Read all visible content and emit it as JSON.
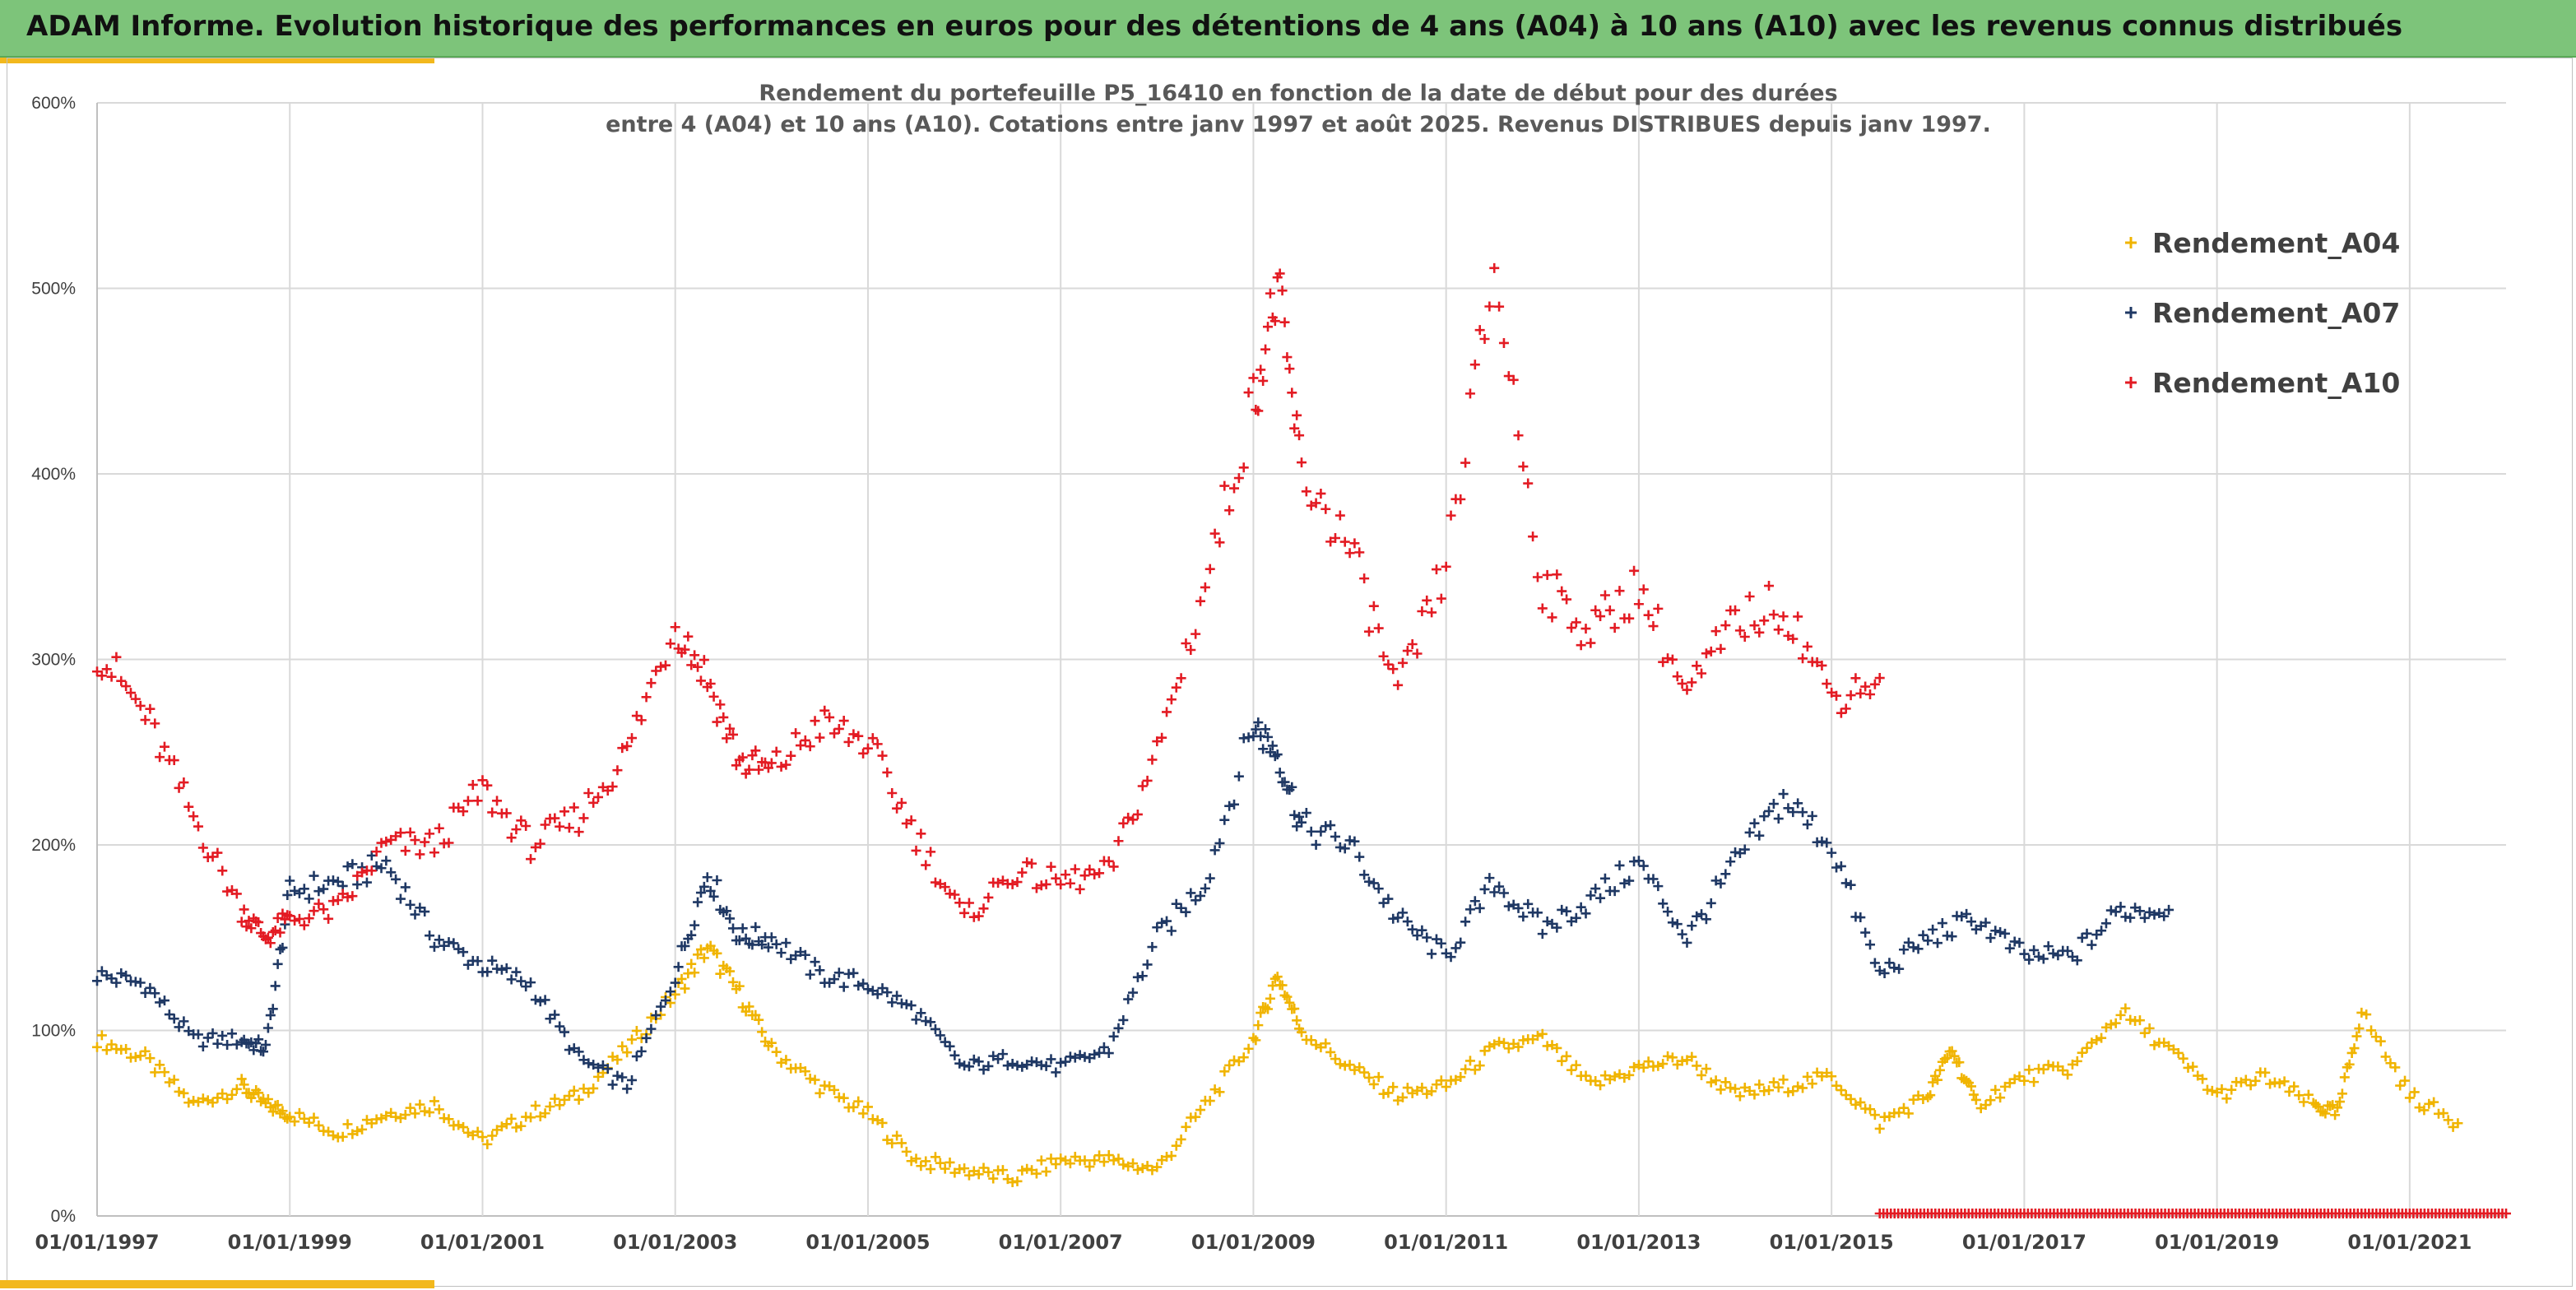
{
  "header": {
    "title": "ADAM Informe. Evolution historique des performances en euros pour des détentions de 4 ans (A04) à 10 ans (A10) avec les revenus connus distribués"
  },
  "chart_data": {
    "type": "scatter",
    "title_line1": "Rendement du portefeuille P5_16410 en fonction de la date de début pour des durées",
    "title_line2": "entre 4 (A04) et 10 ans (A10). Cotations entre janv 1997 et août 2025. Revenus DISTRIBUES depuis janv 1997.",
    "xlabel": "",
    "ylabel": "",
    "x_axis": {
      "type": "date",
      "range": [
        "1997-01-01",
        "2022-01-01"
      ],
      "tick_labels": [
        "01/01/1997",
        "01/01/1999",
        "01/01/2001",
        "01/01/2003",
        "01/01/2005",
        "01/01/2007",
        "01/01/2009",
        "01/01/2011",
        "01/01/2013",
        "01/01/2015",
        "01/01/2017",
        "01/01/2019",
        "01/01/2021"
      ]
    },
    "y_axis": {
      "range": [
        0,
        600
      ],
      "unit": "%",
      "tick_labels": [
        "0%",
        "100%",
        "200%",
        "300%",
        "400%",
        "500%",
        "600%"
      ]
    },
    "grid": true,
    "legend_position": "top-right",
    "marker": "+",
    "series": [
      {
        "name": "Rendement_A04",
        "color": "#f0b400",
        "x": [
          "1997-01",
          "1997-07",
          "1998-01",
          "1998-07",
          "1998-10",
          "1999-01",
          "1999-07",
          "2000-01",
          "2000-07",
          "2001-01",
          "2001-07",
          "2002-01",
          "2002-07",
          "2003-01",
          "2003-05",
          "2003-09",
          "2004-01",
          "2004-07",
          "2005-01",
          "2005-07",
          "2006-01",
          "2006-07",
          "2007-01",
          "2007-07",
          "2008-01",
          "2008-07",
          "2009-01",
          "2009-04",
          "2009-07",
          "2010-01",
          "2010-07",
          "2011-01",
          "2011-07",
          "2012-01",
          "2012-07",
          "2013-01",
          "2013-07",
          "2014-01",
          "2014-07",
          "2015-01",
          "2015-07",
          "2016-01",
          "2016-04",
          "2016-07",
          "2017-01",
          "2017-07",
          "2018-01",
          "2018-07",
          "2019-01",
          "2019-07",
          "2020-01",
          "2020-04",
          "2020-07",
          "2021-01",
          "2021-07"
        ],
        "y": [
          95,
          85,
          60,
          70,
          60,
          55,
          45,
          55,
          60,
          40,
          55,
          65,
          90,
          120,
          145,
          120,
          90,
          70,
          55,
          30,
          25,
          20,
          30,
          30,
          25,
          60,
          95,
          130,
          100,
          80,
          65,
          70,
          90,
          95,
          70,
          80,
          85,
          65,
          70,
          75,
          50,
          65,
          90,
          60,
          75,
          80,
          110,
          90,
          65,
          75,
          60,
          55,
          110,
          65,
          50
        ]
      },
      {
        "name": "Rendement_A07",
        "color": "#1f3864",
        "x": [
          "1997-01",
          "1997-07",
          "1998-01",
          "1998-07",
          "1998-10",
          "1999-01",
          "1999-07",
          "2000-01",
          "2000-07",
          "2001-01",
          "2001-07",
          "2002-01",
          "2002-07",
          "2003-01",
          "2003-05",
          "2003-09",
          "2004-01",
          "2004-07",
          "2005-01",
          "2005-07",
          "2006-01",
          "2006-07",
          "2007-01",
          "2007-07",
          "2008-01",
          "2008-07",
          "2009-01",
          "2009-04",
          "2009-07",
          "2010-01",
          "2010-07",
          "2011-01",
          "2011-07",
          "2012-01",
          "2012-07",
          "2013-01",
          "2013-07",
          "2014-01",
          "2014-07",
          "2015-01",
          "2015-07",
          "2016-01",
          "2016-07",
          "2017-01",
          "2017-07",
          "2018-01",
          "2018-07"
        ],
        "y": [
          130,
          125,
          95,
          95,
          90,
          175,
          180,
          190,
          150,
          135,
          125,
          85,
          70,
          130,
          185,
          150,
          150,
          130,
          125,
          110,
          80,
          85,
          80,
          90,
          150,
          180,
          265,
          250,
          210,
          200,
          160,
          140,
          180,
          155,
          170,
          190,
          150,
          190,
          225,
          200,
          130,
          150,
          160,
          140,
          140,
          165,
          165
        ]
      },
      {
        "name": "Rendement_A10",
        "color": "#e31b23",
        "x": [
          "1997-01",
          "1997-07",
          "1998-01",
          "1998-07",
          "1998-10",
          "1999-01",
          "1999-07",
          "2000-01",
          "2000-07",
          "2001-01",
          "2001-07",
          "2002-01",
          "2002-07",
          "2003-01",
          "2003-05",
          "2003-09",
          "2004-01",
          "2004-07",
          "2005-01",
          "2005-07",
          "2006-01",
          "2006-07",
          "2007-01",
          "2007-07",
          "2008-01",
          "2008-07",
          "2009-01",
          "2009-04",
          "2009-07",
          "2010-01",
          "2010-07",
          "2011-01",
          "2011-07",
          "2012-01",
          "2012-07",
          "2013-01",
          "2013-07",
          "2014-01",
          "2014-07",
          "2015-01",
          "2015-07"
        ],
        "y": [
          305,
          270,
          215,
          165,
          150,
          160,
          165,
          200,
          200,
          230,
          200,
          215,
          250,
          320,
          290,
          245,
          240,
          265,
          255,
          205,
          160,
          185,
          180,
          185,
          250,
          340,
          440,
          500,
          400,
          360,
          280,
          350,
          510,
          340,
          315,
          340,
          280,
          320,
          330,
          280,
          290
        ]
      }
    ],
    "annotations": [
      "Dense row of red markers along 0% from mid-2015 to 2022"
    ]
  }
}
